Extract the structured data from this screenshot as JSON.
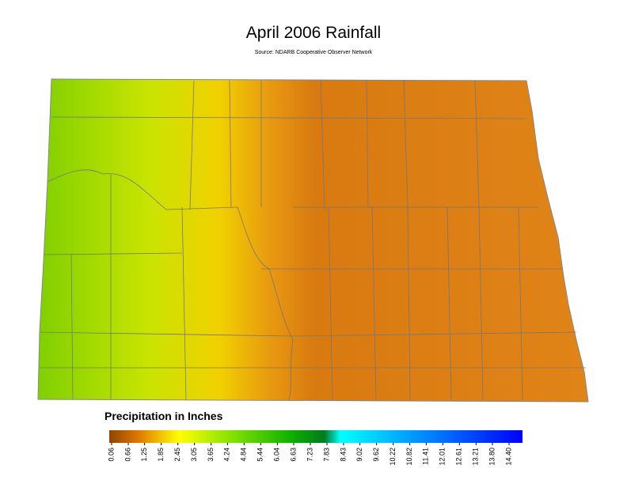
{
  "title": "April 2006 Rainfall",
  "source": "Source: NDARB Cooperative Observer Network",
  "legend": {
    "title": "Precipitation in Inches",
    "ticks": [
      0.06,
      0.66,
      1.25,
      1.85,
      2.45,
      3.05,
      3.65,
      4.24,
      4.84,
      5.44,
      6.04,
      6.63,
      7.23,
      7.83,
      8.43,
      9.02,
      9.62,
      10.22,
      10.82,
      11.41,
      12.01,
      12.61,
      13.21,
      {
        "value": 13.8,
        "label": "13.80"
      },
      {
        "value": 14.4,
        "label": "14.40"
      }
    ]
  }
}
